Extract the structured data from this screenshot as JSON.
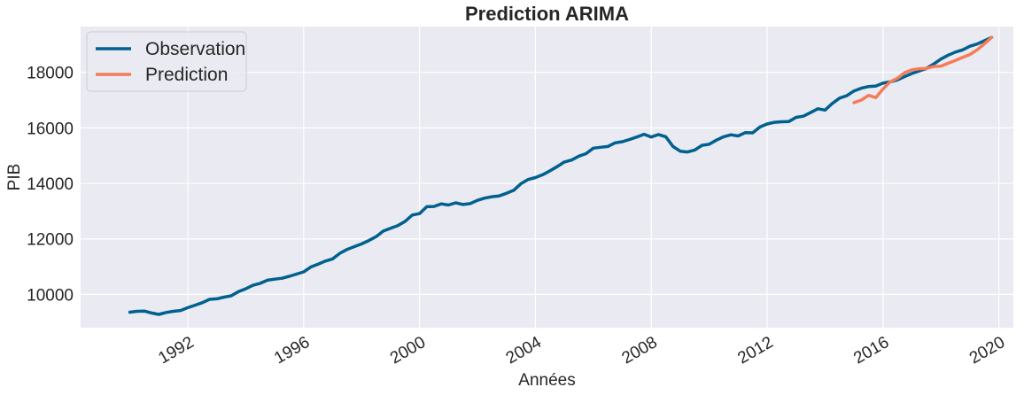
{
  "chart_data": {
    "type": "line",
    "title": "Prediction ARIMA",
    "xlabel": "Années",
    "ylabel": "PIB",
    "xlim": [
      1988.3,
      2020.5
    ],
    "ylim": [
      8800,
      19650
    ],
    "xticks": [
      1992,
      1996,
      2000,
      2004,
      2008,
      2012,
      2016,
      2020
    ],
    "yticks": [
      10000,
      12000,
      14000,
      16000,
      18000
    ],
    "grid": true,
    "legend": "top-left",
    "series": [
      {
        "name": "Observation",
        "color": "#00618e",
        "points": [
          [
            1990.0,
            9360
          ],
          [
            1990.25,
            9390
          ],
          [
            1990.5,
            9400
          ],
          [
            1990.75,
            9330
          ],
          [
            1991.0,
            9280
          ],
          [
            1991.25,
            9350
          ],
          [
            1991.5,
            9390
          ],
          [
            1991.75,
            9420
          ],
          [
            1992.0,
            9520
          ],
          [
            1992.25,
            9610
          ],
          [
            1992.5,
            9700
          ],
          [
            1992.75,
            9820
          ],
          [
            1993.0,
            9840
          ],
          [
            1993.25,
            9900
          ],
          [
            1993.5,
            9950
          ],
          [
            1993.75,
            10100
          ],
          [
            1994.0,
            10200
          ],
          [
            1994.25,
            10330
          ],
          [
            1994.5,
            10400
          ],
          [
            1994.75,
            10510
          ],
          [
            1995.0,
            10550
          ],
          [
            1995.25,
            10580
          ],
          [
            1995.5,
            10650
          ],
          [
            1995.75,
            10730
          ],
          [
            1996.0,
            10810
          ],
          [
            1996.25,
            10990
          ],
          [
            1996.5,
            11090
          ],
          [
            1996.75,
            11200
          ],
          [
            1997.0,
            11280
          ],
          [
            1997.25,
            11480
          ],
          [
            1997.5,
            11620
          ],
          [
            1997.75,
            11720
          ],
          [
            1998.0,
            11820
          ],
          [
            1998.25,
            11940
          ],
          [
            1998.5,
            12080
          ],
          [
            1998.75,
            12280
          ],
          [
            1999.0,
            12380
          ],
          [
            1999.25,
            12480
          ],
          [
            1999.5,
            12630
          ],
          [
            1999.75,
            12860
          ],
          [
            2000.0,
            12910
          ],
          [
            2000.25,
            13160
          ],
          [
            2000.5,
            13170
          ],
          [
            2000.75,
            13260
          ],
          [
            2001.0,
            13220
          ],
          [
            2001.25,
            13300
          ],
          [
            2001.5,
            13240
          ],
          [
            2001.75,
            13270
          ],
          [
            2002.0,
            13390
          ],
          [
            2002.25,
            13470
          ],
          [
            2002.5,
            13520
          ],
          [
            2002.75,
            13550
          ],
          [
            2003.0,
            13640
          ],
          [
            2003.25,
            13750
          ],
          [
            2003.5,
            13990
          ],
          [
            2003.75,
            14140
          ],
          [
            2004.0,
            14210
          ],
          [
            2004.25,
            14310
          ],
          [
            2004.5,
            14450
          ],
          [
            2004.75,
            14600
          ],
          [
            2005.0,
            14770
          ],
          [
            2005.25,
            14840
          ],
          [
            2005.5,
            14980
          ],
          [
            2005.75,
            15070
          ],
          [
            2006.0,
            15270
          ],
          [
            2006.25,
            15300
          ],
          [
            2006.5,
            15330
          ],
          [
            2006.75,
            15460
          ],
          [
            2007.0,
            15500
          ],
          [
            2007.25,
            15580
          ],
          [
            2007.5,
            15670
          ],
          [
            2007.75,
            15770
          ],
          [
            2008.0,
            15670
          ],
          [
            2008.25,
            15760
          ],
          [
            2008.5,
            15680
          ],
          [
            2008.75,
            15330
          ],
          [
            2009.0,
            15160
          ],
          [
            2009.25,
            15130
          ],
          [
            2009.5,
            15200
          ],
          [
            2009.75,
            15370
          ],
          [
            2010.0,
            15410
          ],
          [
            2010.25,
            15560
          ],
          [
            2010.5,
            15680
          ],
          [
            2010.75,
            15750
          ],
          [
            2011.0,
            15710
          ],
          [
            2011.25,
            15830
          ],
          [
            2011.5,
            15820
          ],
          [
            2011.75,
            16030
          ],
          [
            2012.0,
            16140
          ],
          [
            2012.25,
            16200
          ],
          [
            2012.5,
            16220
          ],
          [
            2012.75,
            16230
          ],
          [
            2013.0,
            16380
          ],
          [
            2013.25,
            16420
          ],
          [
            2013.5,
            16550
          ],
          [
            2013.75,
            16690
          ],
          [
            2014.0,
            16640
          ],
          [
            2014.25,
            16880
          ],
          [
            2014.5,
            17070
          ],
          [
            2014.75,
            17160
          ],
          [
            2015.0,
            17330
          ],
          [
            2015.25,
            17430
          ],
          [
            2015.5,
            17490
          ],
          [
            2015.75,
            17510
          ],
          [
            2016.0,
            17610
          ],
          [
            2016.25,
            17660
          ],
          [
            2016.5,
            17730
          ],
          [
            2016.75,
            17850
          ],
          [
            2017.0,
            17960
          ],
          [
            2017.25,
            18050
          ],
          [
            2017.5,
            18140
          ],
          [
            2017.75,
            18300
          ],
          [
            2018.0,
            18480
          ],
          [
            2018.25,
            18620
          ],
          [
            2018.5,
            18730
          ],
          [
            2018.75,
            18810
          ],
          [
            2019.0,
            18940
          ],
          [
            2019.25,
            19020
          ],
          [
            2019.5,
            19140
          ],
          [
            2019.75,
            19260
          ]
        ]
      },
      {
        "name": "Prediction",
        "color": "#f47c58",
        "points": [
          [
            2015.0,
            16910
          ],
          [
            2015.25,
            17000
          ],
          [
            2015.5,
            17170
          ],
          [
            2015.75,
            17090
          ],
          [
            2016.0,
            17400
          ],
          [
            2016.25,
            17660
          ],
          [
            2016.5,
            17790
          ],
          [
            2016.75,
            17990
          ],
          [
            2017.0,
            18090
          ],
          [
            2017.25,
            18130
          ],
          [
            2017.5,
            18140
          ],
          [
            2017.75,
            18210
          ],
          [
            2018.0,
            18220
          ],
          [
            2018.25,
            18330
          ],
          [
            2018.5,
            18430
          ],
          [
            2018.75,
            18540
          ],
          [
            2019.0,
            18640
          ],
          [
            2019.25,
            18810
          ],
          [
            2019.5,
            19030
          ],
          [
            2019.75,
            19260
          ]
        ]
      }
    ]
  }
}
